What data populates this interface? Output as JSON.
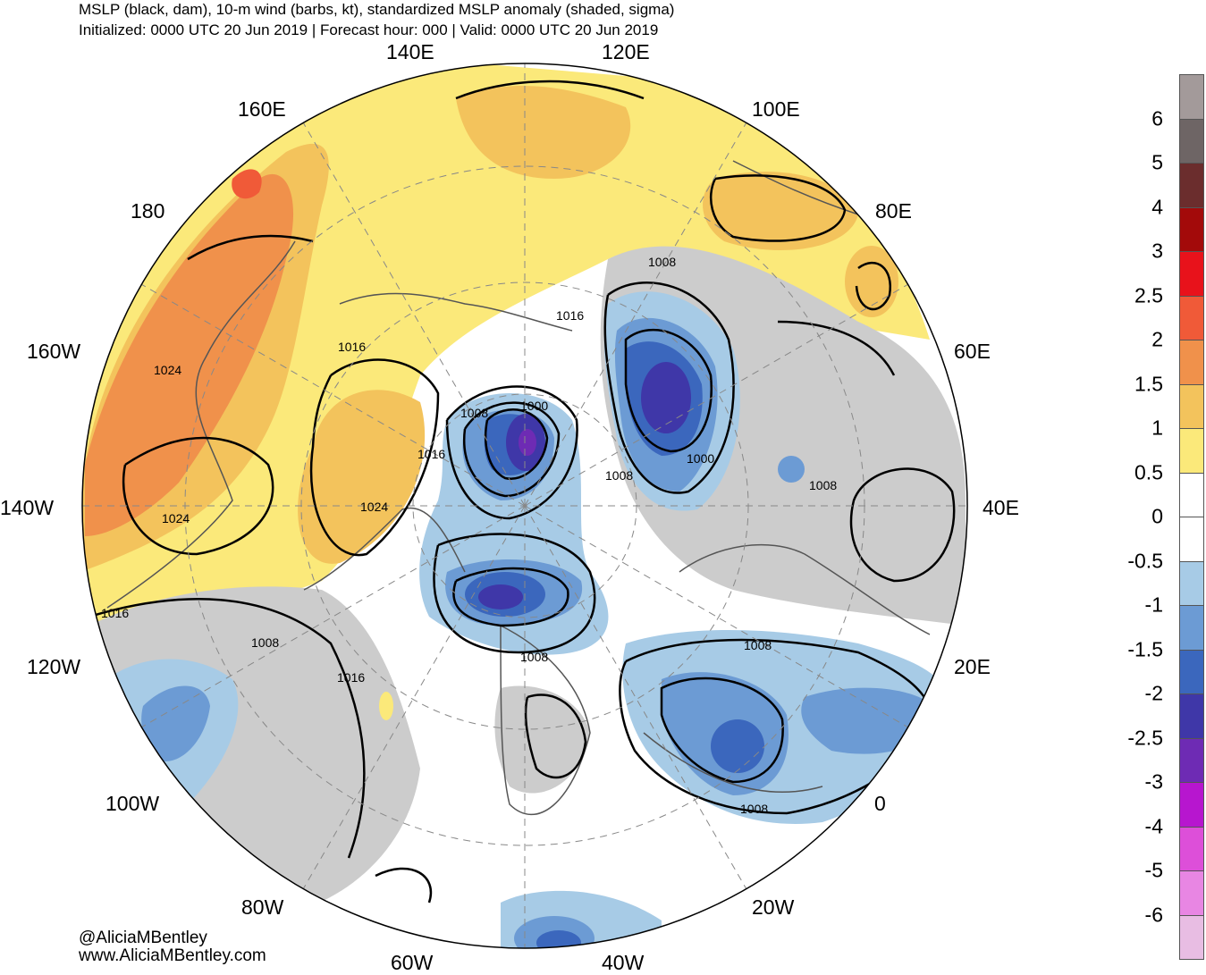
{
  "header": {
    "title": "MSLP (black, dam), 10-m wind (barbs, kt), standardized MSLP anomaly (shaded, sigma)",
    "subtitle": "Initialized: 0000 UTC 20 Jun 2019 | Forecast hour: 000 | Valid: 0000 UTC 20 Jun 2019"
  },
  "map": {
    "projection": "north-polar-stereographic",
    "longitude_labels": [
      "140E",
      "120E",
      "160E",
      "100E",
      "180",
      "80E",
      "160W",
      "60E",
      "140W",
      "40E",
      "120W",
      "20E",
      "100W",
      "0",
      "80W",
      "20W",
      "60W",
      "40W"
    ],
    "isobar_labels": [
      "1008",
      "1016",
      "1008",
      "1000",
      "1024",
      "1016",
      "1008",
      "1000",
      "1008",
      "1024",
      "1024",
      "1008",
      "1016",
      "1016",
      "1008",
      "1008",
      "1008",
      "1016"
    ],
    "colors": {
      "land_outline": "#555555",
      "isobar": "#000000",
      "graticule": "#888888"
    }
  },
  "colorbar": {
    "ticks": [
      "6",
      "5",
      "4",
      "3",
      "2.5",
      "2",
      "1.5",
      "1",
      "0.5",
      "0",
      "-0.5",
      "-1",
      "-1.5",
      "-2",
      "-2.5",
      "-3",
      "-4",
      "-5",
      "-6"
    ],
    "colors": [
      "#a39a9a",
      "#6e6565",
      "#6b2d2d",
      "#a30a0a",
      "#e8121b",
      "#f05a38",
      "#f0914b",
      "#f3c35c",
      "#fbe97a",
      "#ffffff",
      "#ffffff",
      "#a7cbe6",
      "#6c9bd4",
      "#3b67bd",
      "#3f37a8",
      "#6e2bb4",
      "#b716cf",
      "#dd4fd9",
      "#e886e3",
      "#e8bde3"
    ]
  },
  "credits": {
    "handle": "@AliciaMBentley",
    "site": "www.AliciaMBentley.com"
  }
}
